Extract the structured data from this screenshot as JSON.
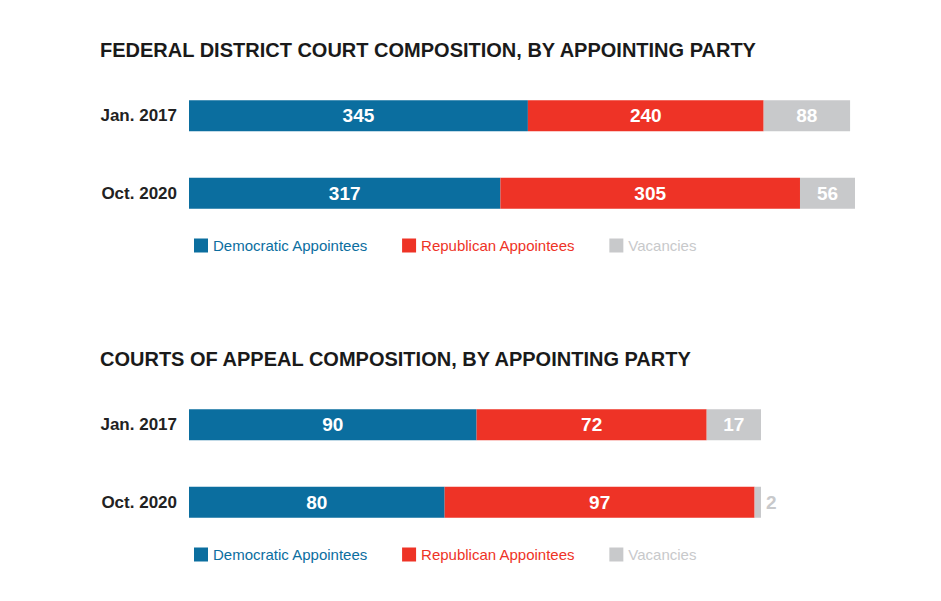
{
  "chart_data": [
    {
      "type": "bar",
      "title": "FEDERAL DISTRICT COURT COMPOSITION, BY APPOINTING PARTY",
      "orientation": "horizontal",
      "stacked": true,
      "data_labels": true,
      "tick_labels": "y",
      "grid": false,
      "legend": "bottom",
      "categories": [
        "Jan. 2017",
        "Oct. 2020"
      ],
      "xlim": [
        0,
        678
      ],
      "series": [
        {
          "name": "Democratic Appointees",
          "color": "#0b6e9f",
          "values": [
            345,
            317
          ]
        },
        {
          "name": "Republican Appointees",
          "color": "#ee3326",
          "values": [
            240,
            305
          ]
        },
        {
          "name": "Vacancies",
          "color": "#c8c9cb",
          "values": [
            88,
            56
          ]
        }
      ]
    },
    {
      "type": "bar",
      "title": "COURTS OF APPEAL COMPOSITION, BY APPOINTING PARTY",
      "orientation": "horizontal",
      "stacked": true,
      "data_labels": true,
      "tick_labels": "y",
      "grid": false,
      "legend": "bottom",
      "categories": [
        "Jan. 2017",
        "Oct. 2020"
      ],
      "xlim": [
        0,
        179
      ],
      "series": [
        {
          "name": "Democratic Appointees",
          "color": "#0b6e9f",
          "values": [
            90,
            80
          ]
        },
        {
          "name": "Republican Appointees",
          "color": "#ee3326",
          "values": [
            72,
            97
          ]
        },
        {
          "name": "Vacancies",
          "color": "#c8c9cb",
          "values": [
            17,
            2
          ]
        }
      ]
    }
  ]
}
